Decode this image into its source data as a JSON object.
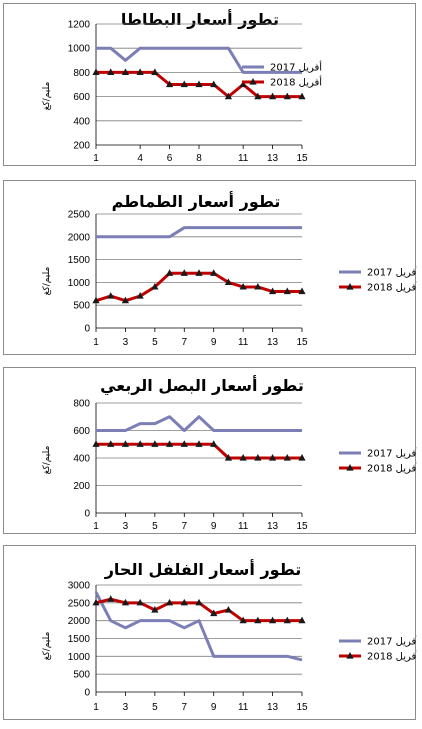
{
  "colors": {
    "series_2017": "#7b7fb5",
    "series_2018": "#c00000",
    "marker": "#1a1a1a",
    "grid": "#7f7f7f"
  },
  "chart_data": [
    {
      "type": "line",
      "title": "تطور أسعار البطاطا",
      "ylabel": "مليم/كغ",
      "ylim": [
        200,
        1200
      ],
      "yticks": [
        "200",
        "400",
        "600",
        "800",
        "1000",
        "1200"
      ],
      "xtick_labels": [
        "1",
        "4",
        "6",
        "8",
        "11",
        "13",
        "15"
      ],
      "xtick_positions": [
        1,
        4,
        6,
        8,
        11,
        13,
        15
      ],
      "legend_position": "below-plot",
      "x": [
        1,
        2,
        3,
        4,
        5,
        6,
        7,
        8,
        9,
        10,
        11,
        12,
        13,
        14,
        15
      ],
      "series": [
        {
          "name": "أفريل 2017",
          "values": [
            1000,
            1000,
            900,
            1000,
            1000,
            1000,
            1000,
            1000,
            1000,
            1000,
            800,
            800,
            800,
            800,
            800
          ]
        },
        {
          "name": "أفريل 2018",
          "values": [
            800,
            800,
            800,
            800,
            800,
            700,
            700,
            700,
            700,
            600,
            700,
            600,
            600,
            600,
            600
          ]
        }
      ]
    },
    {
      "type": "line",
      "title": "تطور أسعار الطماطم",
      "ylabel": "مليم/كغ",
      "ylim": [
        0,
        2500
      ],
      "yticks": [
        "0",
        "500",
        "1000",
        "1500",
        "2000",
        "2500"
      ],
      "xtick_labels": [
        "1",
        "3",
        "5",
        "7",
        "9",
        "11",
        "13",
        "15"
      ],
      "xtick_positions": [
        1,
        3,
        5,
        7,
        9,
        11,
        13,
        15
      ],
      "legend_position": "right",
      "x": [
        1,
        2,
        3,
        4,
        5,
        6,
        7,
        8,
        9,
        10,
        11,
        12,
        13,
        14,
        15
      ],
      "series": [
        {
          "name": "أفريل 2017",
          "values": [
            2000,
            2000,
            2000,
            2000,
            2000,
            2000,
            2200,
            2200,
            2200,
            2200,
            2200,
            2200,
            2200,
            2200,
            2200
          ]
        },
        {
          "name": "أفريل 2018",
          "values": [
            600,
            700,
            600,
            700,
            900,
            1200,
            1200,
            1200,
            1200,
            1000,
            900,
            900,
            800,
            800,
            800
          ]
        }
      ]
    },
    {
      "type": "line",
      "title": "تطور أسعار البصل الربعي",
      "ylabel": "مليم/كغ",
      "ylim": [
        0,
        800
      ],
      "yticks": [
        "0",
        "200",
        "400",
        "600",
        "800"
      ],
      "xtick_labels": [
        "1",
        "3",
        "5",
        "7",
        "9",
        "11",
        "13",
        "15"
      ],
      "xtick_positions": [
        1,
        3,
        5,
        7,
        9,
        11,
        13,
        15
      ],
      "legend_position": "right",
      "x": [
        1,
        2,
        3,
        4,
        5,
        6,
        7,
        8,
        9,
        10,
        11,
        12,
        13,
        14,
        15
      ],
      "series": [
        {
          "name": "أفريل 2017",
          "values": [
            600,
            600,
            600,
            650,
            650,
            700,
            600,
            700,
            600,
            600,
            600,
            600,
            600,
            600,
            600
          ]
        },
        {
          "name": "أفريل 2018",
          "values": [
            500,
            500,
            500,
            500,
            500,
            500,
            500,
            500,
            500,
            400,
            400,
            400,
            400,
            400,
            400
          ]
        }
      ]
    },
    {
      "type": "line",
      "title": "تطور أسعار الفلفل الحار",
      "ylabel": "مليم/كغ",
      "ylim": [
        0,
        3000
      ],
      "yticks": [
        "0",
        "500",
        "1000",
        "1500",
        "2000",
        "2500",
        "3000"
      ],
      "xtick_labels": [
        "1",
        "3",
        "5",
        "7",
        "9",
        "11",
        "13",
        "15"
      ],
      "xtick_positions": [
        1,
        3,
        5,
        7,
        9,
        11,
        13,
        15
      ],
      "legend_position": "right",
      "x": [
        1,
        2,
        3,
        4,
        5,
        6,
        7,
        8,
        9,
        10,
        11,
        12,
        13,
        14,
        15
      ],
      "series": [
        {
          "name": "أفريل 2017",
          "values": [
            2800,
            2000,
            1800,
            2000,
            2000,
            2000,
            1800,
            2000,
            1000,
            1000,
            1000,
            1000,
            1000,
            1000,
            900
          ]
        },
        {
          "name": "أفريل 2018",
          "values": [
            2500,
            2600,
            2500,
            2500,
            2300,
            2500,
            2500,
            2500,
            2200,
            2300,
            2000,
            2000,
            2000,
            2000,
            2000
          ]
        }
      ]
    }
  ]
}
